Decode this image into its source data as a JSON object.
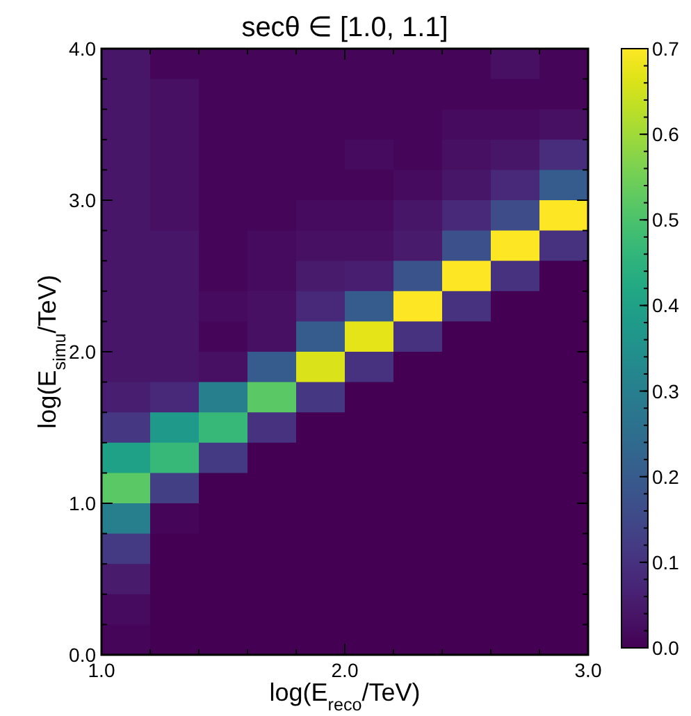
{
  "chart_data": {
    "type": "heatmap",
    "title": "secθ ∈ [1.0, 1.1]",
    "xlabel": "log(E$_{reco}$/TeV)",
    "ylabel": "log(E$_{simu}$/TeV)",
    "xlim": [
      1.0,
      3.0
    ],
    "ylim": [
      0.0,
      4.0
    ],
    "xticks": [
      {
        "value": 1.0,
        "label": "1.0"
      },
      {
        "value": 1.2,
        "label": null
      },
      {
        "value": 1.4,
        "label": null
      },
      {
        "value": 1.6,
        "label": null
      },
      {
        "value": 1.8,
        "label": null
      },
      {
        "value": 2.0,
        "label": "2.0"
      },
      {
        "value": 2.2,
        "label": null
      },
      {
        "value": 2.4,
        "label": null
      },
      {
        "value": 2.6,
        "label": null
      },
      {
        "value": 2.8,
        "label": null
      },
      {
        "value": 3.0,
        "label": "3.0"
      }
    ],
    "yticks": [
      {
        "value": 0.0,
        "label": "0.0"
      },
      {
        "value": 0.2,
        "label": null
      },
      {
        "value": 0.4,
        "label": null
      },
      {
        "value": 0.6,
        "label": null
      },
      {
        "value": 0.8,
        "label": null
      },
      {
        "value": 1.0,
        "label": "1.0"
      },
      {
        "value": 1.2,
        "label": null
      },
      {
        "value": 1.4,
        "label": null
      },
      {
        "value": 1.6,
        "label": null
      },
      {
        "value": 1.8,
        "label": null
      },
      {
        "value": 2.0,
        "label": "2.0"
      },
      {
        "value": 2.2,
        "label": null
      },
      {
        "value": 2.4,
        "label": null
      },
      {
        "value": 2.6,
        "label": null
      },
      {
        "value": 2.8,
        "label": null
      },
      {
        "value": 3.0,
        "label": "3.0"
      },
      {
        "value": 3.2,
        "label": null
      },
      {
        "value": 3.4,
        "label": null
      },
      {
        "value": 3.6,
        "label": null
      },
      {
        "value": 3.8,
        "label": null
      },
      {
        "value": 4.0,
        "label": "4.0"
      }
    ],
    "clim": [
      0.0,
      0.7
    ],
    "cticks": [
      {
        "value": 0.0,
        "label": "0.0"
      },
      {
        "value": 0.1,
        "label": "0.1"
      },
      {
        "value": 0.2,
        "label": "0.2"
      },
      {
        "value": 0.3,
        "label": "0.3"
      },
      {
        "value": 0.4,
        "label": "0.4"
      },
      {
        "value": 0.5,
        "label": "0.5"
      },
      {
        "value": 0.6,
        "label": "0.6"
      },
      {
        "value": 0.7,
        "label": "0.7"
      }
    ],
    "cells": [
      [
        0.04,
        0.01,
        0.01,
        0.01,
        0.01,
        0.01,
        0.01,
        0.01,
        0.03,
        0.01
      ],
      [
        0.04,
        0.03,
        0.01,
        0.01,
        0.01,
        0.01,
        0.01,
        0.01,
        0.01,
        0.01
      ],
      [
        0.04,
        0.03,
        0.01,
        0.01,
        0.01,
        0.01,
        0.01,
        0.02,
        0.02,
        0.03
      ],
      [
        0.04,
        0.03,
        0.01,
        0.01,
        0.01,
        0.02,
        0.01,
        0.03,
        0.04,
        0.09
      ],
      [
        0.04,
        0.03,
        0.01,
        0.01,
        0.01,
        0.01,
        0.02,
        0.04,
        0.08,
        0.2
      ],
      [
        0.04,
        0.03,
        0.01,
        0.01,
        0.02,
        0.02,
        0.04,
        0.08,
        0.16,
        0.7
      ],
      [
        0.04,
        0.04,
        0.01,
        0.02,
        0.03,
        0.03,
        0.05,
        0.17,
        0.7,
        0.1
      ],
      [
        0.04,
        0.04,
        0.01,
        0.02,
        0.05,
        0.06,
        0.18,
        0.7,
        0.1,
        0.0
      ],
      [
        0.04,
        0.04,
        0.02,
        0.03,
        0.08,
        0.2,
        0.7,
        0.1,
        0.0,
        0.0
      ],
      [
        0.04,
        0.04,
        0.01,
        0.03,
        0.2,
        0.67,
        0.1,
        0.0,
        0.0,
        0.0
      ],
      [
        0.04,
        0.04,
        0.03,
        0.2,
        0.66,
        0.1,
        0.0,
        0.0,
        0.0,
        0.0
      ],
      [
        0.06,
        0.08,
        0.3,
        0.52,
        0.11,
        0.0,
        0.0,
        0.0,
        0.0,
        0.0
      ],
      [
        0.11,
        0.38,
        0.47,
        0.1,
        0.0,
        0.0,
        0.0,
        0.0,
        0.0,
        0.0
      ],
      [
        0.4,
        0.47,
        0.12,
        0.0,
        0.0,
        0.0,
        0.0,
        0.0,
        0.0,
        0.0
      ],
      [
        0.52,
        0.13,
        0.0,
        0.0,
        0.0,
        0.0,
        0.0,
        0.0,
        0.0,
        0.0
      ],
      [
        0.3,
        0.01,
        0.0,
        0.0,
        0.0,
        0.0,
        0.0,
        0.0,
        0.0,
        0.0
      ],
      [
        0.12,
        0.0,
        0.0,
        0.0,
        0.0,
        0.0,
        0.0,
        0.0,
        0.0,
        0.0
      ],
      [
        0.05,
        0.0,
        0.0,
        0.0,
        0.0,
        0.0,
        0.0,
        0.0,
        0.0,
        0.0
      ],
      [
        0.02,
        0.0,
        0.0,
        0.0,
        0.0,
        0.0,
        0.0,
        0.0,
        0.0,
        0.0
      ],
      [
        0.01,
        0.0,
        0.0,
        0.0,
        0.0,
        0.0,
        0.0,
        0.0,
        0.0,
        0.0
      ]
    ]
  }
}
